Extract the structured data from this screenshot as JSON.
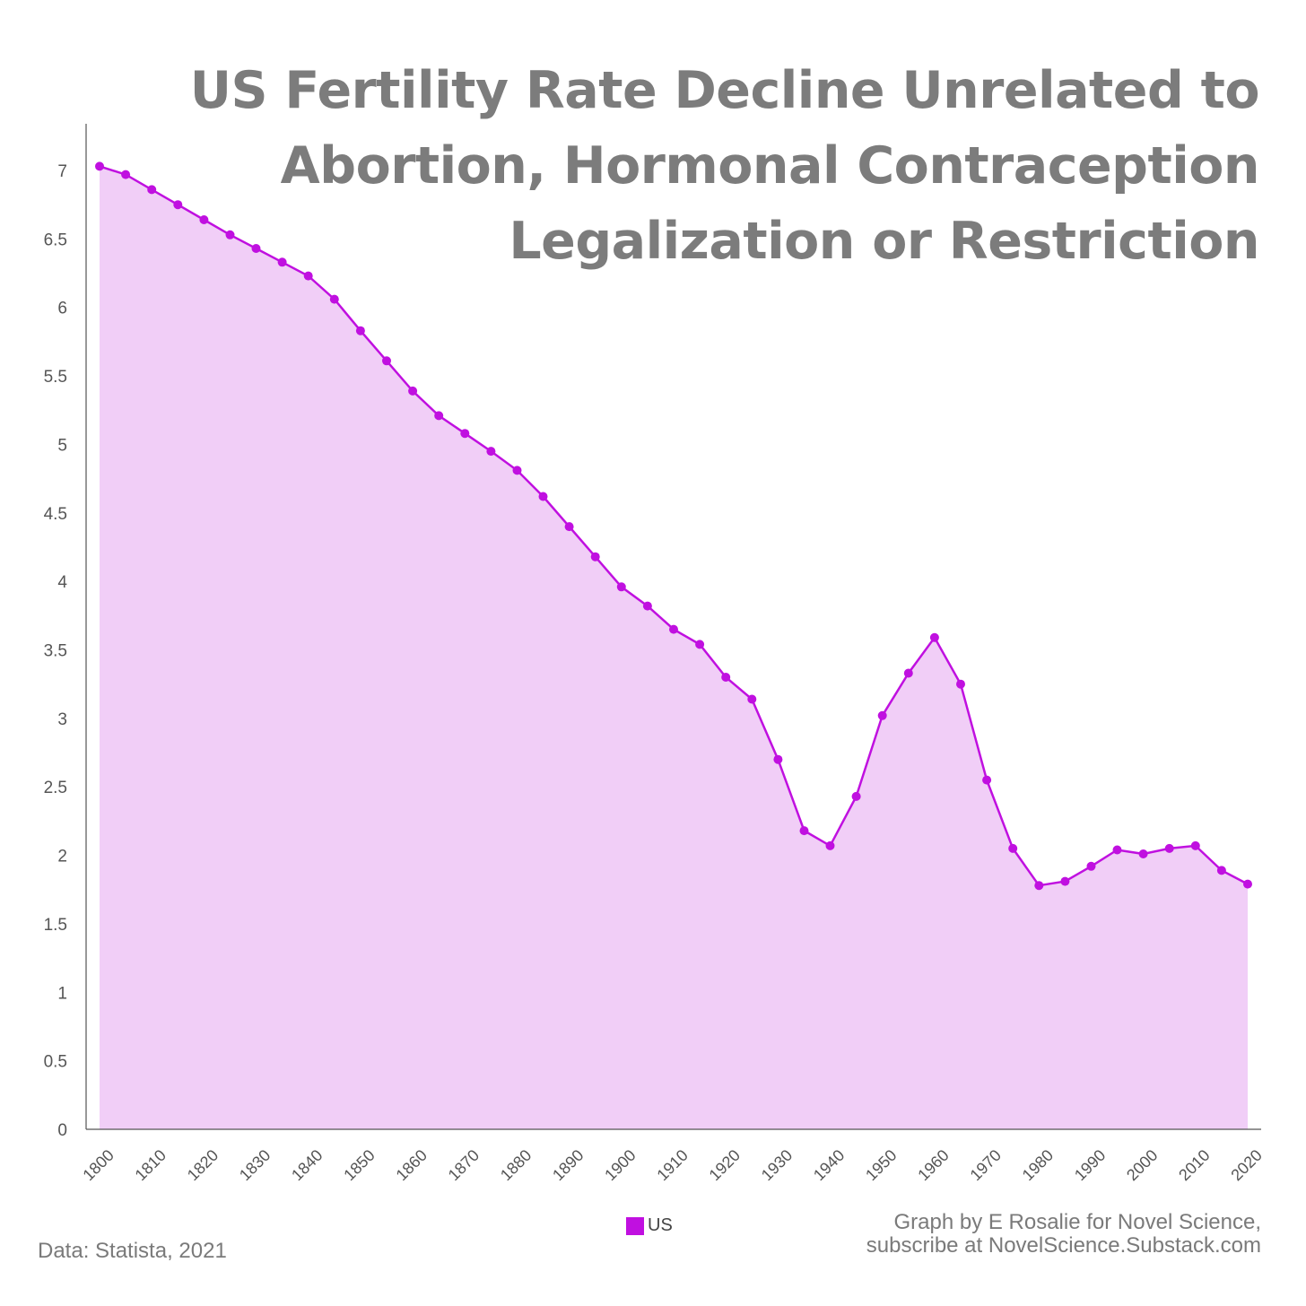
{
  "title_lines": [
    "US Fertility Rate Decline Unrelated to",
    "Abortion, Hormonal Contraception",
    "Legalization or Restriction"
  ],
  "credit_lines": [
    "Graph by E Rosalie for Novel Science,",
    "subscribe at NovelScience.Substack.com"
  ],
  "source": "Data: Statista, 2021",
  "colors": {
    "line": "#c010e0",
    "fill": "#f1cef7",
    "axis": "#555555",
    "text": "#7c7c7c"
  },
  "chart_data": {
    "type": "area",
    "title": "US Fertility Rate Decline Unrelated to Abortion, Hormonal Contraception Legalization or Restriction",
    "xlabel": "",
    "ylabel": "",
    "ylim": [
      0,
      7.5
    ],
    "xlim": [
      1800,
      2020
    ],
    "yticks": [
      "0",
      "0.5",
      "1",
      "1.5",
      "2",
      "2.5",
      "3",
      "3.5",
      "4",
      "4.5",
      "5",
      "5.5",
      "6",
      "6.5",
      "7"
    ],
    "xticks": [
      "1800",
      "1810",
      "1820",
      "1830",
      "1840",
      "1850",
      "1860",
      "1870",
      "1880",
      "1890",
      "1900",
      "1910",
      "1920",
      "1930",
      "1940",
      "1950",
      "1960",
      "1970",
      "1980",
      "1990",
      "2000",
      "2010",
      "2020"
    ],
    "legend": "bottom-center",
    "grid": false,
    "series": [
      {
        "name": "US",
        "x": [
          1800,
          1805,
          1810,
          1815,
          1820,
          1825,
          1830,
          1835,
          1840,
          1845,
          1850,
          1855,
          1860,
          1865,
          1870,
          1875,
          1880,
          1885,
          1890,
          1895,
          1900,
          1905,
          1910,
          1915,
          1920,
          1925,
          1930,
          1935,
          1940,
          1945,
          1950,
          1955,
          1960,
          1965,
          1970,
          1975,
          1980,
          1985,
          1990,
          1995,
          2000,
          2005,
          2010,
          2015,
          2020
        ],
        "values": [
          7.03,
          6.97,
          6.86,
          6.75,
          6.64,
          6.53,
          6.43,
          6.33,
          6.23,
          6.06,
          5.83,
          5.61,
          5.39,
          5.21,
          5.08,
          4.95,
          4.81,
          4.62,
          4.4,
          4.18,
          3.96,
          3.82,
          3.65,
          3.54,
          3.3,
          3.14,
          2.7,
          2.18,
          2.07,
          2.43,
          3.02,
          3.33,
          3.59,
          3.25,
          2.55,
          2.05,
          1.78,
          1.81,
          1.92,
          2.04,
          2.01,
          2.05,
          2.07,
          1.89,
          1.79
        ]
      }
    ]
  }
}
